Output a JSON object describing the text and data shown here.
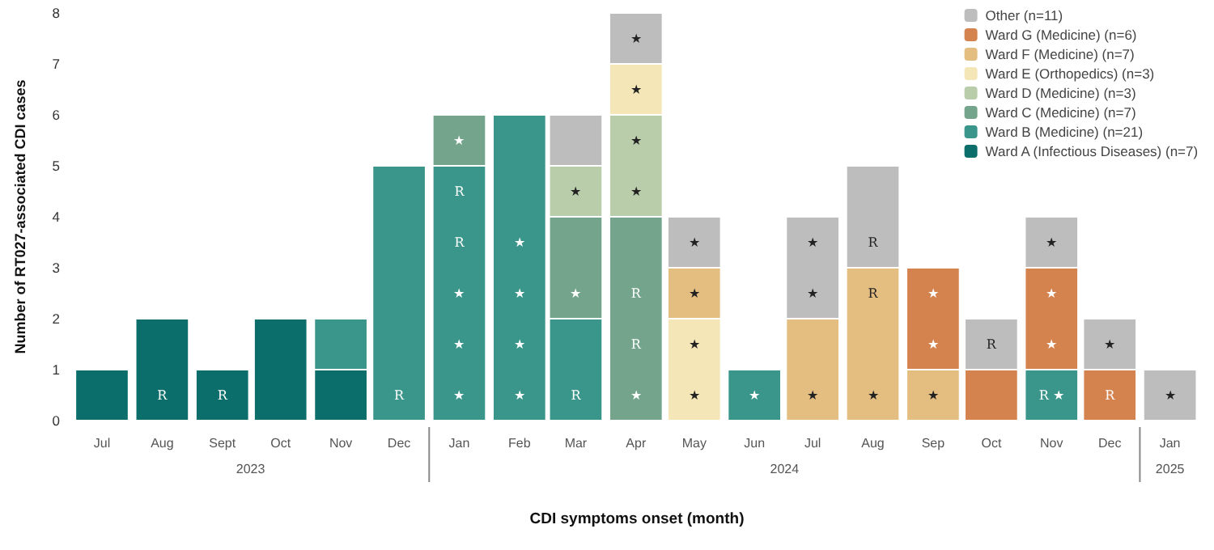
{
  "chart_data": {
    "type": "bar",
    "stacked": true,
    "xlabel": "CDI symptoms onset (month)",
    "ylabel": "Number of RT027-associated CDI cases",
    "x": [
      "2023-07",
      "2023-08",
      "2023-09",
      "2023-10",
      "2023-11",
      "2023-12",
      "2024-01",
      "2024-02",
      "2024-03",
      "2024-04",
      "2024-05",
      "2024-06",
      "2024-07",
      "2024-08",
      "2024-09",
      "2024-10",
      "2024-11",
      "2024-12",
      "2025-01"
    ],
    "xlim": [
      "2023-06-16",
      "2025-01-17"
    ],
    "xticks": [
      {
        "value": "2023-07",
        "label": "Jul"
      },
      {
        "value": "2023-08",
        "label": "Aug"
      },
      {
        "value": "2023-09",
        "label": "Sept"
      },
      {
        "value": "2023-10",
        "label": "Oct"
      },
      {
        "value": "2023-11",
        "label": "Nov"
      },
      {
        "value": "2023-12",
        "label": "Dec"
      },
      {
        "value": "2024-01",
        "label": "Jan"
      },
      {
        "value": "2024-02",
        "label": "Feb"
      },
      {
        "value": "2024-03",
        "label": "Mar"
      },
      {
        "value": "2024-04",
        "label": "Apr"
      },
      {
        "value": "2024-05",
        "label": "May"
      },
      {
        "value": "2024-06",
        "label": "Jun"
      },
      {
        "value": "2024-07",
        "label": "Jul"
      },
      {
        "value": "2024-08",
        "label": "Aug"
      },
      {
        "value": "2024-09",
        "label": "Sep"
      },
      {
        "value": "2024-10",
        "label": "Oct"
      },
      {
        "value": "2024-11",
        "label": "Nov"
      },
      {
        "value": "2024-12",
        "label": "Dec"
      },
      {
        "value": "2025-01",
        "label": "Jan"
      }
    ],
    "annotations": [
      "2023",
      "2024",
      "2025"
    ],
    "ylim": [
      0,
      8
    ],
    "yticks": [
      0,
      1,
      2,
      3,
      4,
      5,
      6,
      7,
      8
    ],
    "grid": false,
    "legend": "top right",
    "series": [
      {
        "name": "Ward A (Infectious Diseases) (n=7)",
        "color": "#0b6e6b",
        "values": [
          1,
          2,
          1,
          2,
          1,
          null,
          null,
          null,
          null,
          null,
          null,
          null,
          null,
          null,
          null,
          null,
          null,
          null,
          null
        ],
        "value_labels": [
          null,
          "\nR",
          "R",
          null,
          null,
          null,
          null,
          null,
          null,
          null,
          null,
          null,
          null,
          null,
          null,
          null,
          null,
          null,
          null
        ]
      },
      {
        "name": "Ward B (Medicine) (n=21)",
        "color": "#3a968a",
        "values": [
          null,
          null,
          null,
          null,
          1,
          5,
          5,
          6,
          2,
          null,
          null,
          1,
          null,
          null,
          null,
          null,
          1,
          null,
          null
        ],
        "value_labels": [
          null,
          null,
          null,
          null,
          null,
          "\n\n\n\nR",
          "R\nR\n★\n★\n★",
          "\n\n★\n★\n★\n★",
          "\nR",
          null,
          null,
          "★",
          null,
          null,
          null,
          null,
          "R ★",
          null,
          null
        ]
      },
      {
        "name": "Ward C (Medicine) (n=7)",
        "color": "#74a58c",
        "values": [
          null,
          null,
          null,
          null,
          null,
          null,
          1,
          null,
          2,
          4,
          null,
          null,
          null,
          null,
          null,
          null,
          null,
          null,
          null
        ],
        "value_labels": [
          null,
          null,
          null,
          null,
          null,
          null,
          "★",
          null,
          "\n★",
          "\nR\nR\n★",
          null,
          null,
          null,
          null,
          null,
          null,
          null,
          null,
          null
        ]
      },
      {
        "name": "Ward D (Medicine) (n=3)",
        "color": "#b9cdab",
        "values": [
          null,
          null,
          null,
          null,
          null,
          null,
          null,
          null,
          1,
          2,
          null,
          null,
          null,
          null,
          null,
          null,
          null,
          null,
          null
        ],
        "value_labels": [
          null,
          null,
          null,
          null,
          null,
          null,
          null,
          null,
          "★",
          "★\n★",
          null,
          null,
          null,
          null,
          null,
          null,
          null,
          null,
          null
        ]
      },
      {
        "name": "Ward E (Orthopedics) (n=3)",
        "color": "#f4e6b7",
        "values": [
          null,
          null,
          null,
          null,
          null,
          null,
          null,
          null,
          null,
          1,
          2,
          null,
          null,
          null,
          null,
          null,
          null,
          null,
          null
        ],
        "value_labels": [
          null,
          null,
          null,
          null,
          null,
          null,
          null,
          null,
          null,
          "★",
          "★\n★",
          null,
          null,
          null,
          null,
          null,
          null,
          null,
          null
        ]
      },
      {
        "name": "Ward F (Medicine) (n=7)",
        "color": "#e4bd80",
        "values": [
          null,
          null,
          null,
          null,
          null,
          null,
          null,
          null,
          null,
          null,
          1,
          null,
          2,
          3,
          1,
          null,
          null,
          null,
          null
        ],
        "value_labels": [
          null,
          null,
          null,
          null,
          null,
          null,
          null,
          null,
          null,
          null,
          "★",
          null,
          "\n★",
          "R\n\n★",
          "★",
          null,
          null,
          null,
          null
        ]
      },
      {
        "name": "Ward G (Medicine) (n=6)",
        "color": "#d4834f",
        "values": [
          null,
          null,
          null,
          null,
          null,
          null,
          null,
          null,
          null,
          null,
          null,
          null,
          null,
          null,
          2,
          1,
          2,
          1,
          null
        ],
        "value_labels": [
          null,
          null,
          null,
          null,
          null,
          null,
          null,
          null,
          null,
          null,
          null,
          null,
          null,
          null,
          "★\n★",
          null,
          "★\n★",
          "R",
          null
        ]
      },
      {
        "name": "Other (n=11)",
        "color": "#bdbdbd",
        "values": [
          null,
          null,
          null,
          null,
          null,
          null,
          null,
          null,
          1,
          1,
          1,
          null,
          2,
          2,
          null,
          1,
          1,
          1,
          1
        ],
        "value_labels": [
          null,
          null,
          null,
          null,
          null,
          null,
          null,
          null,
          null,
          "★",
          "★",
          null,
          "★\n★",
          "\nR",
          null,
          "R",
          "★",
          "★",
          "★"
        ]
      }
    ]
  }
}
